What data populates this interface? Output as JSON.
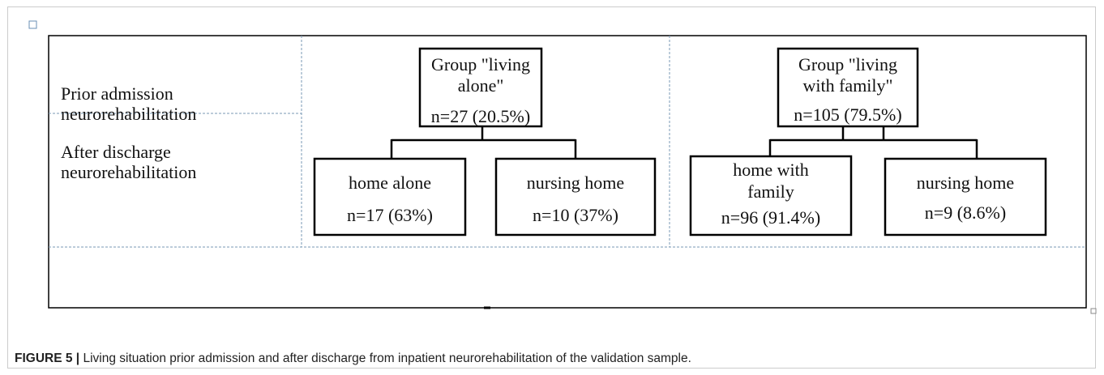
{
  "row_labels": [
    [
      "Prior admission",
      "neurorehabilitation"
    ],
    [
      "After discharge",
      "neurorehabilitation"
    ]
  ],
  "nodes": [
    {
      "lines": [
        "Group \"living",
        "alone\"",
        "n=27 (20.5%)"
      ]
    },
    {
      "lines": [
        "home alone",
        "n=17 (63%)"
      ]
    },
    {
      "lines": [
        "nursing home",
        "n=10 (37%)"
      ]
    },
    {
      "lines": [
        "Group \"living",
        "with family\"",
        "n=105 (79.5%)"
      ]
    },
    {
      "lines": [
        "home with",
        "family",
        "n=96 (91.4%)"
      ]
    },
    {
      "lines": [
        "nursing home",
        "n=9 (8.6%)"
      ]
    }
  ],
  "caption": {
    "label": "FIGURE 5 |",
    "text": "Living situation prior admission and after discharge from inpatient neurorehabilitation of the validation sample."
  }
}
